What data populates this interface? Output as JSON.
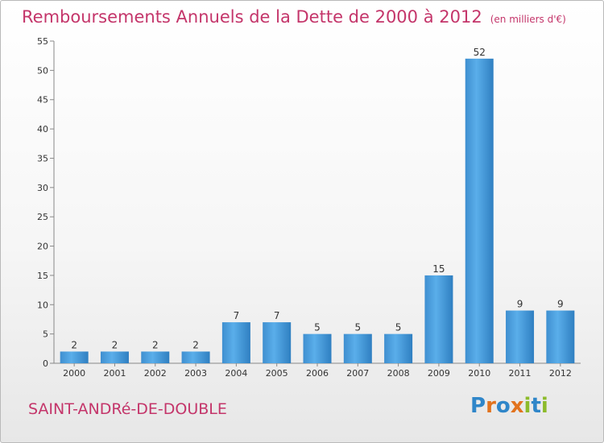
{
  "header": {
    "title": "Remboursements Annuels de la Dette de 2000 à 2012",
    "subtitle": "(en milliers d'€)"
  },
  "footer": {
    "commune": "SAINT-ANDRé-DE-DOUBLE",
    "brand_letters": [
      {
        "ch": "P",
        "color": "#2f86c9"
      },
      {
        "ch": "r",
        "color": "#e2731e"
      },
      {
        "ch": "o",
        "color": "#2f86c9"
      },
      {
        "ch": "x",
        "color": "#e2731e"
      },
      {
        "ch": "i",
        "color": "#8dbb2b"
      },
      {
        "ch": "t",
        "color": "#2f86c9"
      },
      {
        "ch": "i",
        "color": "#8dbb2b"
      }
    ]
  },
  "colors": {
    "bar": "#4d9fdc",
    "bar_dark": "#2f7fc1",
    "accent": "#c4356a"
  },
  "chart_data": {
    "type": "bar",
    "categories": [
      "2000",
      "2001",
      "2002",
      "2003",
      "2004",
      "2005",
      "2006",
      "2007",
      "2008",
      "2009",
      "2010",
      "2011",
      "2012"
    ],
    "values": [
      2,
      2,
      2,
      2,
      7,
      7,
      5,
      5,
      5,
      15,
      52,
      9,
      9
    ],
    "ylim": [
      0,
      55
    ],
    "yticks": [
      0,
      5,
      10,
      15,
      20,
      25,
      30,
      35,
      40,
      45,
      50,
      55
    ],
    "title": "Remboursements Annuels de la Dette de 2000 à 2012",
    "xlabel": "",
    "ylabel": "",
    "grid": false,
    "data_labels": true
  }
}
